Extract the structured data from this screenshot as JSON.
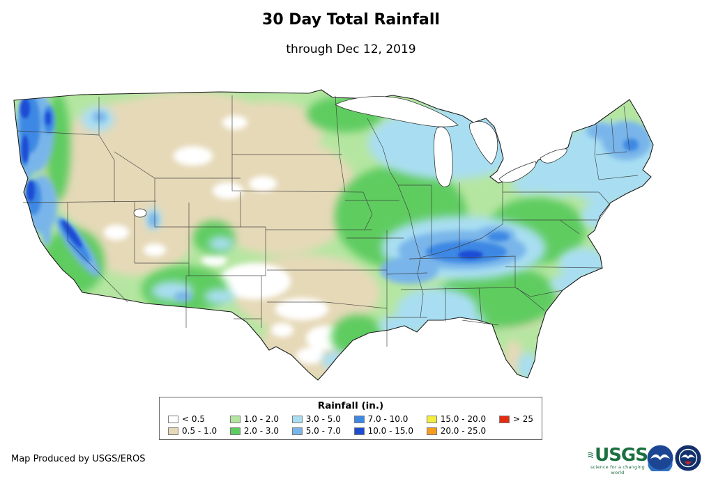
{
  "header": {
    "title": "30 Day Total Rainfall",
    "subtitle": "through Dec 12, 2019"
  },
  "legend": {
    "title": "Rainfall (in.)",
    "items": [
      {
        "label": "< 0.5",
        "color": "#ffffff"
      },
      {
        "label": "0.5 - 1.0",
        "color": "#e6d9b8"
      },
      {
        "label": "1.0 - 2.0",
        "color": "#b5e6a1"
      },
      {
        "label": "2.0 - 3.0",
        "color": "#5ecc61"
      },
      {
        "label": "3.0 - 5.0",
        "color": "#a9def2"
      },
      {
        "label": "5.0 - 7.0",
        "color": "#79b5ea"
      },
      {
        "label": "7.0 - 10.0",
        "color": "#3c88e4"
      },
      {
        "label": "10.0 - 15.0",
        "color": "#1c4bd4"
      },
      {
        "label": "15.0 - 20.0",
        "color": "#f3ee40"
      },
      {
        "label": "20.0 - 25.0",
        "color": "#f69c1c"
      },
      {
        "label": "> 25",
        "color": "#e52b10"
      }
    ]
  },
  "footer": {
    "credit": "Map Produced by USGS/EROS"
  },
  "logos": {
    "usgs_name": "USGS",
    "usgs_tagline": "science for a changing world"
  }
}
